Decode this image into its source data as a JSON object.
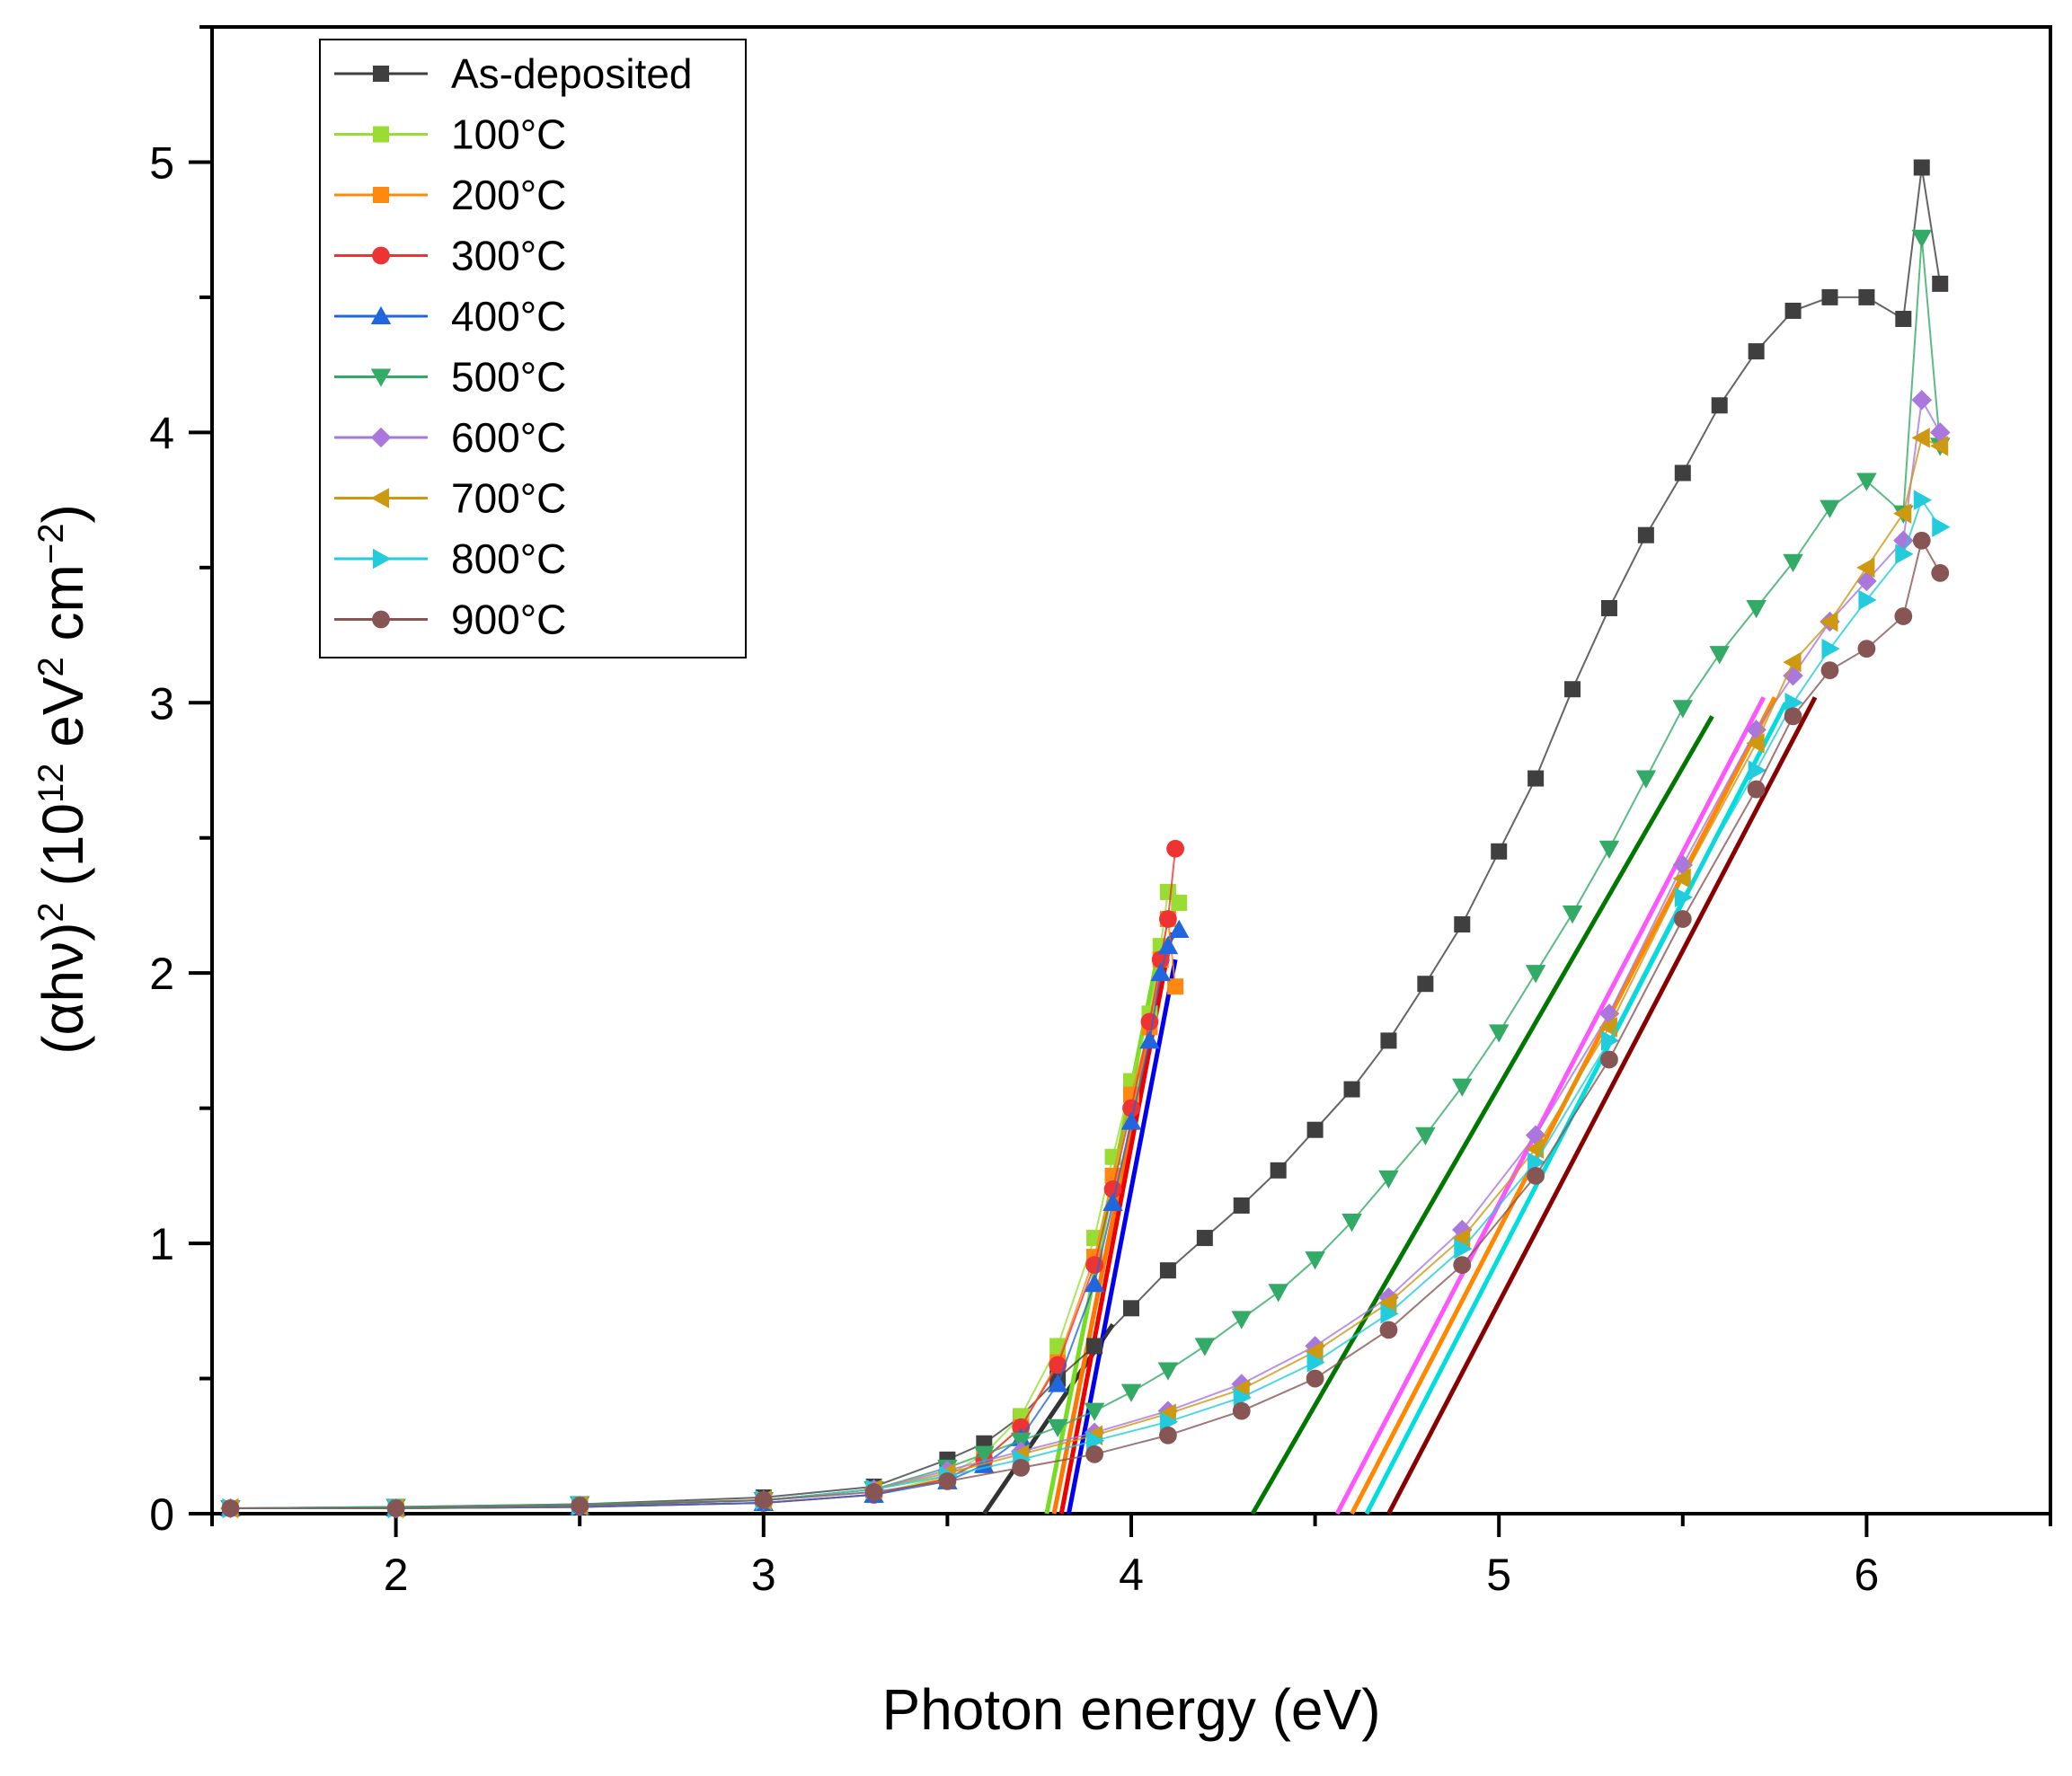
{
  "chart_data": {
    "type": "scatter",
    "title": "",
    "xlabel": "Photon energy (eV)",
    "ylabel_parts": [
      "(αhν)",
      "2",
      " (10",
      "12",
      " eV",
      "2",
      " cm",
      "−2",
      ")"
    ],
    "xlim": [
      1.5,
      6.5
    ],
    "ylim": [
      0,
      5.5
    ],
    "xticks": [
      2,
      3,
      4,
      5,
      6
    ],
    "yticks": [
      0,
      1,
      2,
      3,
      4,
      5
    ],
    "legend_position": "top-left",
    "series": [
      {
        "name": "As-deposited",
        "color": "#3f3f3f",
        "marker": "square",
        "points": [
          [
            1.55,
            0.02
          ],
          [
            2.0,
            0.025
          ],
          [
            2.5,
            0.035
          ],
          [
            3.0,
            0.06
          ],
          [
            3.3,
            0.1
          ],
          [
            3.5,
            0.2
          ],
          [
            3.6,
            0.26
          ],
          [
            3.7,
            0.36
          ],
          [
            3.8,
            0.5
          ],
          [
            3.9,
            0.62
          ],
          [
            4.0,
            0.76
          ],
          [
            4.1,
            0.9
          ],
          [
            4.2,
            1.02
          ],
          [
            4.3,
            1.14
          ],
          [
            4.4,
            1.27
          ],
          [
            4.5,
            1.42
          ],
          [
            4.6,
            1.57
          ],
          [
            4.7,
            1.75
          ],
          [
            4.8,
            1.96
          ],
          [
            4.9,
            2.18
          ],
          [
            5.0,
            2.45
          ],
          [
            5.1,
            2.72
          ],
          [
            5.2,
            3.05
          ],
          [
            5.3,
            3.35
          ],
          [
            5.4,
            3.62
          ],
          [
            5.5,
            3.85
          ],
          [
            5.6,
            4.1
          ],
          [
            5.7,
            4.3
          ],
          [
            5.8,
            4.45
          ],
          [
            5.9,
            4.5
          ],
          [
            6.0,
            4.5
          ],
          [
            6.1,
            4.42
          ],
          [
            6.15,
            4.98
          ],
          [
            6.2,
            4.55
          ]
        ]
      },
      {
        "name": "100°C",
        "color": "#99dd33",
        "marker": "square",
        "points": [
          [
            1.55,
            0.02
          ],
          [
            2.0,
            0.02
          ],
          [
            2.5,
            0.025
          ],
          [
            3.0,
            0.04
          ],
          [
            3.3,
            0.07
          ],
          [
            3.5,
            0.14
          ],
          [
            3.6,
            0.22
          ],
          [
            3.7,
            0.36
          ],
          [
            3.8,
            0.62
          ],
          [
            3.9,
            1.02
          ],
          [
            3.95,
            1.32
          ],
          [
            4.0,
            1.6
          ],
          [
            4.05,
            1.85
          ],
          [
            4.08,
            2.1
          ],
          [
            4.1,
            2.3
          ],
          [
            4.13,
            2.26
          ]
        ]
      },
      {
        "name": "200°C",
        "color": "#ff8811",
        "marker": "square",
        "points": [
          [
            1.55,
            0.02
          ],
          [
            2.0,
            0.02
          ],
          [
            2.5,
            0.025
          ],
          [
            3.0,
            0.04
          ],
          [
            3.3,
            0.07
          ],
          [
            3.5,
            0.13
          ],
          [
            3.6,
            0.2
          ],
          [
            3.7,
            0.32
          ],
          [
            3.8,
            0.56
          ],
          [
            3.9,
            0.95
          ],
          [
            3.95,
            1.25
          ],
          [
            4.0,
            1.55
          ],
          [
            4.05,
            1.8
          ],
          [
            4.08,
            2.05
          ],
          [
            4.1,
            2.2
          ],
          [
            4.12,
            1.95
          ]
        ]
      },
      {
        "name": "300°C",
        "color": "#ee3333",
        "marker": "circle",
        "points": [
          [
            1.55,
            0.02
          ],
          [
            2.0,
            0.02
          ],
          [
            2.5,
            0.025
          ],
          [
            3.0,
            0.04
          ],
          [
            3.3,
            0.07
          ],
          [
            3.5,
            0.13
          ],
          [
            3.6,
            0.2
          ],
          [
            3.7,
            0.32
          ],
          [
            3.8,
            0.55
          ],
          [
            3.9,
            0.92
          ],
          [
            3.95,
            1.2
          ],
          [
            4.0,
            1.5
          ],
          [
            4.05,
            1.82
          ],
          [
            4.08,
            2.05
          ],
          [
            4.1,
            2.2
          ],
          [
            4.12,
            2.46
          ]
        ]
      },
      {
        "name": "400°C",
        "color": "#2266dd",
        "marker": "triangle-up",
        "points": [
          [
            1.55,
            0.02
          ],
          [
            2.0,
            0.02
          ],
          [
            2.5,
            0.025
          ],
          [
            3.0,
            0.04
          ],
          [
            3.3,
            0.07
          ],
          [
            3.5,
            0.12
          ],
          [
            3.6,
            0.18
          ],
          [
            3.7,
            0.28
          ],
          [
            3.8,
            0.48
          ],
          [
            3.9,
            0.85
          ],
          [
            3.95,
            1.15
          ],
          [
            4.0,
            1.45
          ],
          [
            4.05,
            1.75
          ],
          [
            4.08,
            2.0
          ],
          [
            4.1,
            2.1
          ],
          [
            4.13,
            2.16
          ]
        ]
      },
      {
        "name": "500°C",
        "color": "#33aa66",
        "marker": "triangle-down",
        "points": [
          [
            1.55,
            0.02
          ],
          [
            2.0,
            0.025
          ],
          [
            2.5,
            0.035
          ],
          [
            3.0,
            0.05
          ],
          [
            3.3,
            0.09
          ],
          [
            3.5,
            0.17
          ],
          [
            3.6,
            0.22
          ],
          [
            3.7,
            0.27
          ],
          [
            3.8,
            0.32
          ],
          [
            3.9,
            0.38
          ],
          [
            4.0,
            0.45
          ],
          [
            4.1,
            0.53
          ],
          [
            4.2,
            0.62
          ],
          [
            4.3,
            0.72
          ],
          [
            4.4,
            0.82
          ],
          [
            4.5,
            0.94
          ],
          [
            4.6,
            1.08
          ],
          [
            4.7,
            1.24
          ],
          [
            4.8,
            1.4
          ],
          [
            4.9,
            1.58
          ],
          [
            5.0,
            1.78
          ],
          [
            5.1,
            2.0
          ],
          [
            5.2,
            2.22
          ],
          [
            5.3,
            2.46
          ],
          [
            5.4,
            2.72
          ],
          [
            5.5,
            2.98
          ],
          [
            5.6,
            3.18
          ],
          [
            5.7,
            3.35
          ],
          [
            5.8,
            3.52
          ],
          [
            5.9,
            3.72
          ],
          [
            6.0,
            3.82
          ],
          [
            6.1,
            3.7
          ],
          [
            6.15,
            4.72
          ],
          [
            6.2,
            3.95
          ]
        ]
      },
      {
        "name": "600°C",
        "color": "#aa77dd",
        "marker": "diamond",
        "points": [
          [
            1.55,
            0.02
          ],
          [
            2.0,
            0.02
          ],
          [
            2.5,
            0.03
          ],
          [
            3.0,
            0.05
          ],
          [
            3.3,
            0.09
          ],
          [
            3.5,
            0.16
          ],
          [
            3.7,
            0.23
          ],
          [
            3.9,
            0.3
          ],
          [
            4.1,
            0.38
          ],
          [
            4.3,
            0.48
          ],
          [
            4.5,
            0.62
          ],
          [
            4.7,
            0.8
          ],
          [
            4.9,
            1.05
          ],
          [
            5.1,
            1.4
          ],
          [
            5.3,
            1.85
          ],
          [
            5.5,
            2.4
          ],
          [
            5.7,
            2.9
          ],
          [
            5.8,
            3.1
          ],
          [
            5.9,
            3.3
          ],
          [
            6.0,
            3.45
          ],
          [
            6.1,
            3.6
          ],
          [
            6.15,
            4.12
          ],
          [
            6.2,
            4.0
          ]
        ]
      },
      {
        "name": "700°C",
        "color": "#cc9911",
        "marker": "triangle-left",
        "points": [
          [
            1.55,
            0.02
          ],
          [
            2.0,
            0.02
          ],
          [
            2.5,
            0.03
          ],
          [
            3.0,
            0.05
          ],
          [
            3.3,
            0.09
          ],
          [
            3.5,
            0.15
          ],
          [
            3.7,
            0.22
          ],
          [
            3.9,
            0.29
          ],
          [
            4.1,
            0.37
          ],
          [
            4.3,
            0.46
          ],
          [
            4.5,
            0.6
          ],
          [
            4.7,
            0.78
          ],
          [
            4.9,
            1.02
          ],
          [
            5.1,
            1.35
          ],
          [
            5.3,
            1.8
          ],
          [
            5.5,
            2.35
          ],
          [
            5.7,
            2.85
          ],
          [
            5.8,
            3.15
          ],
          [
            5.9,
            3.3
          ],
          [
            6.0,
            3.5
          ],
          [
            6.1,
            3.7
          ],
          [
            6.15,
            3.98
          ],
          [
            6.2,
            3.95
          ]
        ]
      },
      {
        "name": "800°C",
        "color": "#22ccdd",
        "marker": "triangle-right",
        "points": [
          [
            1.55,
            0.02
          ],
          [
            2.0,
            0.02
          ],
          [
            2.5,
            0.03
          ],
          [
            3.0,
            0.05
          ],
          [
            3.3,
            0.09
          ],
          [
            3.5,
            0.14
          ],
          [
            3.7,
            0.2
          ],
          [
            3.9,
            0.27
          ],
          [
            4.1,
            0.34
          ],
          [
            4.3,
            0.43
          ],
          [
            4.5,
            0.56
          ],
          [
            4.7,
            0.74
          ],
          [
            4.9,
            0.98
          ],
          [
            5.1,
            1.3
          ],
          [
            5.3,
            1.75
          ],
          [
            5.5,
            2.28
          ],
          [
            5.7,
            2.75
          ],
          [
            5.8,
            3.0
          ],
          [
            5.9,
            3.2
          ],
          [
            6.0,
            3.38
          ],
          [
            6.1,
            3.55
          ],
          [
            6.15,
            3.75
          ],
          [
            6.2,
            3.65
          ]
        ]
      },
      {
        "name": "900°C",
        "color": "#885555",
        "marker": "circle",
        "points": [
          [
            1.55,
            0.02
          ],
          [
            2.0,
            0.02
          ],
          [
            2.5,
            0.03
          ],
          [
            3.0,
            0.05
          ],
          [
            3.3,
            0.08
          ],
          [
            3.5,
            0.12
          ],
          [
            3.7,
            0.17
          ],
          [
            3.9,
            0.22
          ],
          [
            4.1,
            0.29
          ],
          [
            4.3,
            0.38
          ],
          [
            4.5,
            0.5
          ],
          [
            4.7,
            0.68
          ],
          [
            4.9,
            0.92
          ],
          [
            5.1,
            1.25
          ],
          [
            5.3,
            1.68
          ],
          [
            5.5,
            2.2
          ],
          [
            5.7,
            2.68
          ],
          [
            5.8,
            2.95
          ],
          [
            5.9,
            3.12
          ],
          [
            6.0,
            3.2
          ],
          [
            6.1,
            3.32
          ],
          [
            6.15,
            3.6
          ],
          [
            6.2,
            3.48
          ]
        ]
      }
    ],
    "fit_lines": [
      {
        "color": "#333333",
        "from": [
          3.6,
          0.0
        ],
        "to": [
          3.95,
          0.7
        ]
      },
      {
        "color": "#77dd22",
        "from": [
          3.77,
          0.0
        ],
        "to": [
          4.07,
          2.05
        ]
      },
      {
        "color": "#ff7700",
        "from": [
          3.79,
          0.0
        ],
        "to": [
          4.09,
          2.05
        ]
      },
      {
        "color": "#ee0000",
        "from": [
          3.81,
          0.0
        ],
        "to": [
          4.11,
          2.15
        ]
      },
      {
        "color": "#0000ee",
        "from": [
          3.83,
          0.0
        ],
        "to": [
          4.12,
          2.05
        ]
      },
      {
        "color": "#007700",
        "from": [
          4.33,
          0.0
        ],
        "to": [
          5.58,
          2.95
        ]
      },
      {
        "color": "#ff55ff",
        "from": [
          4.56,
          0.0
        ],
        "to": [
          5.72,
          3.02
        ]
      },
      {
        "color": "#ff8800",
        "from": [
          4.6,
          0.0
        ],
        "to": [
          5.75,
          3.02
        ]
      },
      {
        "color": "#00dddd",
        "from": [
          4.64,
          0.0
        ],
        "to": [
          5.78,
          3.0
        ]
      },
      {
        "color": "#880000",
        "from": [
          4.7,
          0.0
        ],
        "to": [
          5.86,
          3.02
        ]
      }
    ]
  }
}
